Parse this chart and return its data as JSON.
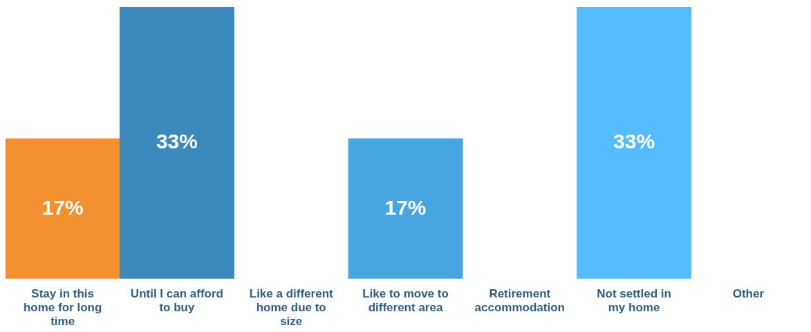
{
  "chart_data": {
    "type": "bar",
    "categories": [
      "Stay in this home for long time",
      "Until I can afford to buy",
      "Like a different home due to size",
      "Like to move to different area",
      "Retirement accommodation",
      "Not settled in my home",
      "Other"
    ],
    "values": [
      17,
      33,
      0,
      17,
      0,
      33,
      0
    ],
    "colors": [
      "#f39130",
      "#3c8abd",
      null,
      "#47a6df",
      null,
      "#55bdfd",
      null
    ],
    "value_labels": [
      "17%",
      "33%",
      null,
      "17%",
      null,
      "33%",
      null
    ],
    "grid": false,
    "legend": false
  }
}
